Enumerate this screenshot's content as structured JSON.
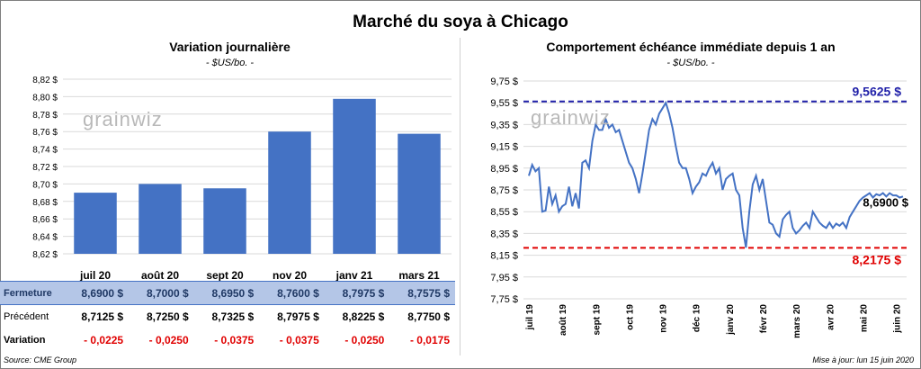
{
  "title": "Marché du soya à Chicago",
  "left": {
    "title": "Variation journalière",
    "unit": "- $US/bo. -"
  },
  "right": {
    "title": "Comportement échéance immédiate depuis 1 an",
    "unit": "- $US/bo. -"
  },
  "watermark": "grainwiz",
  "table": {
    "rows": [
      {
        "label": "Fermeture",
        "values": [
          "8,6900 $",
          "8,7000 $",
          "8,6950 $",
          "8,7600 $",
          "8,7975 $",
          "8,7575 $"
        ]
      },
      {
        "label": "Précédent",
        "values": [
          "8,7125 $",
          "8,7250 $",
          "8,7325 $",
          "8,7975 $",
          "8,8225 $",
          "8,7750 $"
        ]
      },
      {
        "label": "Variation",
        "values": [
          "- 0,0225",
          "- 0,0250",
          "- 0,0375",
          "- 0,0375",
          "- 0,0250",
          "- 0,0175"
        ]
      }
    ]
  },
  "source": "Source: CME Group",
  "updated": "Mise à jour: lun 15 juin 2020",
  "colors": {
    "bar": "#4472c4",
    "line": "#4472c4",
    "high": "#1f1fa8",
    "low": "#e00000"
  },
  "chart_data": [
    {
      "type": "bar",
      "title": "Variation journalière",
      "categories": [
        "juil 20",
        "août 20",
        "sept 20",
        "nov 20",
        "janv 21",
        "mars 21"
      ],
      "values": [
        8.69,
        8.7,
        8.695,
        8.76,
        8.7975,
        8.7575
      ],
      "ylim": [
        8.62,
        8.82
      ],
      "yticks": [
        "8,62 $",
        "8,64 $",
        "8,66 $",
        "8,68 $",
        "8,70 $",
        "8,72 $",
        "8,74 $",
        "8,76 $",
        "8,78 $",
        "8,80 $",
        "8,82 $"
      ],
      "grid": true
    },
    {
      "type": "line",
      "title": "Comportement échéance immédiate depuis 1 an",
      "ylim": [
        7.75,
        9.75
      ],
      "yticks": [
        "7,75 $",
        "7,95 $",
        "8,15 $",
        "8,35 $",
        "8,55 $",
        "8,75 $",
        "8,95 $",
        "9,15 $",
        "9,35 $",
        "9,55 $",
        "9,75 $"
      ],
      "xticks": [
        "juil 19",
        "août 19",
        "sept 19",
        "oct 19",
        "nov 19",
        "déc 19",
        "janv 20",
        "févr 20",
        "mars 20",
        "avr 20",
        "mai 20",
        "juin 20"
      ],
      "high": {
        "value": 9.5625,
        "label": "9,5625 $"
      },
      "low": {
        "value": 8.2175,
        "label": "8,2175 $"
      },
      "last": {
        "value": 8.69,
        "label": "8,6900 $"
      },
      "x": [
        0,
        0.1,
        0.2,
        0.3,
        0.4,
        0.5,
        0.6,
        0.7,
        0.8,
        0.9,
        1.0,
        1.1,
        1.2,
        1.3,
        1.4,
        1.5,
        1.6,
        1.7,
        1.8,
        1.9,
        2.0,
        2.1,
        2.2,
        2.3,
        2.4,
        2.5,
        2.6,
        2.7,
        2.8,
        2.9,
        3.0,
        3.1,
        3.2,
        3.3,
        3.4,
        3.5,
        3.6,
        3.7,
        3.8,
        3.9,
        4.0,
        4.1,
        4.2,
        4.3,
        4.4,
        4.5,
        4.6,
        4.7,
        4.8,
        4.9,
        5.0,
        5.1,
        5.2,
        5.3,
        5.4,
        5.5,
        5.6,
        5.7,
        5.8,
        5.9,
        6.0,
        6.1,
        6.2,
        6.3,
        6.4,
        6.5,
        6.6,
        6.7,
        6.8,
        6.9,
        7.0,
        7.1,
        7.2,
        7.3,
        7.4,
        7.5,
        7.6,
        7.7,
        7.8,
        7.9,
        8.0,
        8.1,
        8.2,
        8.3,
        8.4,
        8.5,
        8.6,
        8.7,
        8.8,
        8.9,
        9.0,
        9.1,
        9.2,
        9.3,
        9.4,
        9.5,
        9.6,
        9.7,
        9.8,
        9.9,
        10.0,
        10.1,
        10.2,
        10.3,
        10.4,
        10.5,
        10.6,
        10.7,
        10.8,
        10.9,
        11.0,
        11.1,
        11.2
      ],
      "values": [
        8.88,
        8.98,
        8.92,
        8.95,
        8.55,
        8.56,
        8.78,
        8.62,
        8.7,
        8.55,
        8.6,
        8.62,
        8.78,
        8.6,
        8.72,
        8.58,
        9.0,
        9.02,
        8.95,
        9.2,
        9.35,
        9.3,
        9.3,
        9.4,
        9.32,
        9.35,
        9.28,
        9.3,
        9.2,
        9.1,
        9.0,
        8.95,
        8.85,
        8.72,
        8.9,
        9.1,
        9.3,
        9.4,
        9.35,
        9.45,
        9.5,
        9.55,
        9.45,
        9.32,
        9.15,
        9.0,
        8.95,
        8.95,
        8.85,
        8.72,
        8.78,
        8.82,
        8.9,
        8.88,
        8.95,
        9.0,
        8.9,
        8.95,
        8.75,
        8.85,
        8.88,
        8.9,
        8.75,
        8.7,
        8.4,
        8.22,
        8.55,
        8.8,
        8.88,
        8.75,
        8.85,
        8.65,
        8.45,
        8.43,
        8.35,
        8.32,
        8.48,
        8.52,
        8.55,
        8.4,
        8.35,
        8.38,
        8.42,
        8.45,
        8.4,
        8.55,
        8.5,
        8.45,
        8.42,
        8.4,
        8.45,
        8.4,
        8.44,
        8.42,
        8.45,
        8.4,
        8.5,
        8.55,
        8.6,
        8.65,
        8.68,
        8.7,
        8.72,
        8.68,
        8.71,
        8.7,
        8.72,
        8.69,
        8.72,
        8.7,
        8.7,
        8.68,
        8.69
      ]
    }
  ]
}
